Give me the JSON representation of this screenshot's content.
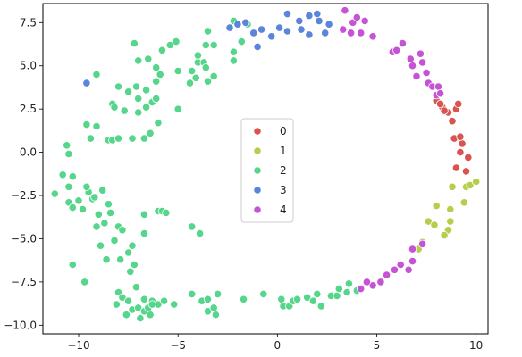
{
  "chart_data": {
    "type": "scatter",
    "title": "",
    "xlabel": "",
    "ylabel": "",
    "xlim": [
      -11.8,
      10.6
    ],
    "ylim": [
      -10.5,
      8.6
    ],
    "xticks": [
      -10,
      -5,
      0,
      5,
      10
    ],
    "yticks": [
      -10.0,
      -7.5,
      -5.0,
      -2.5,
      0.0,
      2.5,
      5.0,
      7.5
    ],
    "xtick_labels": [
      "−10",
      "−5",
      "0",
      "5",
      "10"
    ],
    "ytick_labels": [
      "−10.0",
      "−7.5",
      "−5.0",
      "−2.5",
      "0.0",
      "2.5",
      "5.0",
      "7.5"
    ],
    "grid": false,
    "legend_position": "center",
    "series": [
      {
        "name": "0",
        "color": "#d9534f",
        "points": [
          [
            8.0,
            3.0
          ],
          [
            8.3,
            2.6
          ],
          [
            8.6,
            2.3
          ],
          [
            9.0,
            2.5
          ],
          [
            8.2,
            2.8
          ],
          [
            9.1,
            2.8
          ],
          [
            8.8,
            1.8
          ],
          [
            8.9,
            0.8
          ],
          [
            9.3,
            0.5
          ],
          [
            9.2,
            0.0
          ],
          [
            9.0,
            -0.9
          ],
          [
            9.5,
            -1.1
          ],
          [
            9.6,
            -0.3
          ],
          [
            9.2,
            0.9
          ],
          [
            8.4,
            2.4
          ]
        ]
      },
      {
        "name": "1",
        "color": "#b5cf4d",
        "points": [
          [
            8.8,
            -2.0
          ],
          [
            9.5,
            -2.0
          ],
          [
            9.7,
            -1.9
          ],
          [
            10.0,
            -1.7
          ],
          [
            9.4,
            -2.9
          ],
          [
            8.7,
            -3.3
          ],
          [
            8.0,
            -3.1
          ],
          [
            7.6,
            -4.0
          ],
          [
            7.9,
            -4.2
          ],
          [
            8.6,
            -4.5
          ],
          [
            8.4,
            -4.8
          ],
          [
            7.3,
            -5.2
          ],
          [
            7.1,
            -5.6
          ],
          [
            8.7,
            -4.0
          ]
        ]
      },
      {
        "name": "2",
        "color": "#55d68b",
        "points": [
          [
            -11.2,
            -2.4
          ],
          [
            -10.5,
            -2.9
          ],
          [
            -10.3,
            -3.2
          ],
          [
            -10.0,
            -2.8
          ],
          [
            -10.3,
            -1.4
          ],
          [
            -9.8,
            -3.3
          ],
          [
            -10.5,
            -2.0
          ],
          [
            -9.5,
            -2.3
          ],
          [
            -9.3,
            -2.7
          ],
          [
            -9.0,
            -3.6
          ],
          [
            -9.6,
            -2.0
          ],
          [
            -9.2,
            -2.6
          ],
          [
            -8.8,
            -2.2
          ],
          [
            -8.5,
            -3.0
          ],
          [
            -8.4,
            -3.5
          ],
          [
            -8.7,
            -4.1
          ],
          [
            -9.1,
            -4.3
          ],
          [
            -8.0,
            -4.3
          ],
          [
            -8.2,
            -5.1
          ],
          [
            -7.5,
            -5.8
          ],
          [
            -7.8,
            -4.5
          ],
          [
            -7.3,
            -5.4
          ],
          [
            -8.9,
            -5.4
          ],
          [
            -8.6,
            -6.2
          ],
          [
            -7.9,
            -6.2
          ],
          [
            -7.2,
            -6.5
          ],
          [
            -7.4,
            -6.9
          ],
          [
            -7.1,
            -7.8
          ],
          [
            -8.0,
            -8.1
          ],
          [
            -7.8,
            -8.4
          ],
          [
            -8.1,
            -8.8
          ],
          [
            -7.5,
            -8.6
          ],
          [
            -7.3,
            -9.1
          ],
          [
            -7.6,
            -9.4
          ],
          [
            -7.0,
            -9.0
          ],
          [
            -6.7,
            -9.2
          ],
          [
            -6.4,
            -9.4
          ],
          [
            -6.7,
            -8.5
          ],
          [
            -6.3,
            -8.6
          ],
          [
            -6.5,
            -9.0
          ],
          [
            -6.9,
            -9.6
          ],
          [
            -6.0,
            -8.8
          ],
          [
            -6.3,
            -8.8
          ],
          [
            -5.7,
            -8.6
          ],
          [
            -5.2,
            -8.8
          ],
          [
            -10.3,
            -6.5
          ],
          [
            -9.7,
            -7.5
          ],
          [
            -6.7,
            -3.6
          ],
          [
            -6.7,
            -4.7
          ],
          [
            -6.0,
            -3.4
          ],
          [
            -5.8,
            -3.4
          ],
          [
            -5.6,
            -3.5
          ],
          [
            -4.3,
            -4.3
          ],
          [
            -3.9,
            -4.7
          ],
          [
            -4.3,
            -8.2
          ],
          [
            -3.8,
            -8.6
          ],
          [
            -3.5,
            -8.5
          ],
          [
            -3.5,
            -9.2
          ],
          [
            -3.2,
            -9.0
          ],
          [
            -3.0,
            -8.2
          ],
          [
            -3.1,
            -9.4
          ],
          [
            -1.7,
            -8.5
          ],
          [
            -0.7,
            -8.2
          ],
          [
            0.2,
            -8.5
          ],
          [
            0.3,
            -8.9
          ],
          [
            0.6,
            -8.9
          ],
          [
            0.8,
            -8.6
          ],
          [
            1.5,
            -8.4
          ],
          [
            2.0,
            -8.2
          ],
          [
            2.7,
            -8.3
          ],
          [
            3.0,
            -8.3
          ],
          [
            3.5,
            -8.1
          ],
          [
            4.0,
            -8.0
          ],
          [
            2.2,
            -8.9
          ],
          [
            1.8,
            -8.6
          ],
          [
            1.0,
            -8.5
          ],
          [
            3.1,
            -7.9
          ],
          [
            3.6,
            -7.6
          ],
          [
            -9.1,
            4.5
          ],
          [
            -10.5,
            -0.1
          ],
          [
            -10.6,
            0.4
          ],
          [
            -10.8,
            -1.3
          ],
          [
            -9.6,
            1.6
          ],
          [
            -9.4,
            0.8
          ],
          [
            -9.1,
            1.5
          ],
          [
            -8.5,
            0.7
          ],
          [
            -8.3,
            0.7
          ],
          [
            -8.0,
            0.8
          ],
          [
            -7.3,
            0.8
          ],
          [
            -6.7,
            0.8
          ],
          [
            -6.4,
            1.1
          ],
          [
            -6.0,
            1.7
          ],
          [
            -5.0,
            2.5
          ],
          [
            -7.7,
            2.4
          ],
          [
            -7.0,
            2.3
          ],
          [
            -6.6,
            2.6
          ],
          [
            -8.3,
            2.8
          ],
          [
            -8.2,
            2.6
          ],
          [
            -7.5,
            3.5
          ],
          [
            -7.1,
            3.8
          ],
          [
            -7.0,
            3.1
          ],
          [
            -6.6,
            3.6
          ],
          [
            -6.3,
            2.9
          ],
          [
            -6.1,
            3.1
          ],
          [
            -8.0,
            3.8
          ],
          [
            -6.1,
            4.1
          ],
          [
            -5.9,
            4.5
          ],
          [
            -6.1,
            4.9
          ],
          [
            -6.5,
            5.4
          ],
          [
            -7.0,
            5.3
          ],
          [
            -7.2,
            6.3
          ],
          [
            -5.8,
            5.9
          ],
          [
            -5.4,
            6.2
          ],
          [
            -5.1,
            6.4
          ],
          [
            -5.0,
            4.7
          ],
          [
            -4.4,
            4.0
          ],
          [
            -4.1,
            4.3
          ],
          [
            -4.3,
            4.7
          ],
          [
            -4.0,
            5.2
          ],
          [
            -4.0,
            5.6
          ],
          [
            -3.7,
            5.2
          ],
          [
            -3.6,
            4.9
          ],
          [
            -3.5,
            4.1
          ],
          [
            -3.2,
            4.4
          ],
          [
            -3.6,
            6.2
          ],
          [
            -3.2,
            6.2
          ],
          [
            -2.2,
            5.3
          ],
          [
            -2.2,
            5.8
          ],
          [
            -1.8,
            6.4
          ],
          [
            -1.5,
            7.4
          ],
          [
            -3.5,
            7.0
          ],
          [
            -2.2,
            7.6
          ]
        ]
      },
      {
        "name": "3",
        "color": "#5b84db",
        "points": [
          [
            -9.6,
            4.0
          ],
          [
            -2.4,
            7.2
          ],
          [
            -2.0,
            7.4
          ],
          [
            -1.6,
            7.5
          ],
          [
            -1.2,
            6.9
          ],
          [
            -1.0,
            6.1
          ],
          [
            -0.8,
            7.1
          ],
          [
            -0.3,
            6.7
          ],
          [
            0.1,
            7.2
          ],
          [
            0.5,
            7.0
          ],
          [
            0.5,
            8.0
          ],
          [
            1.1,
            7.6
          ],
          [
            1.2,
            7.1
          ],
          [
            1.6,
            7.9
          ],
          [
            1.6,
            6.8
          ],
          [
            2.0,
            8.0
          ],
          [
            2.1,
            7.6
          ],
          [
            2.4,
            6.9
          ],
          [
            2.6,
            7.4
          ]
        ]
      },
      {
        "name": "4",
        "color": "#c652d6",
        "points": [
          [
            3.4,
            8.2
          ],
          [
            3.3,
            7.1
          ],
          [
            3.7,
            6.9
          ],
          [
            3.8,
            7.5
          ],
          [
            4.0,
            7.8
          ],
          [
            4.2,
            6.9
          ],
          [
            4.4,
            7.6
          ],
          [
            4.8,
            6.7
          ],
          [
            5.8,
            5.8
          ],
          [
            6.0,
            5.9
          ],
          [
            6.3,
            6.3
          ],
          [
            6.7,
            5.4
          ],
          [
            6.8,
            5.0
          ],
          [
            7.0,
            4.4
          ],
          [
            7.2,
            5.7
          ],
          [
            7.3,
            5.2
          ],
          [
            7.5,
            4.6
          ],
          [
            7.6,
            4.0
          ],
          [
            7.8,
            3.8
          ],
          [
            8.0,
            3.3
          ],
          [
            8.1,
            3.8
          ],
          [
            8.2,
            3.4
          ],
          [
            6.8,
            -6.3
          ],
          [
            6.6,
            -6.8
          ],
          [
            6.2,
            -6.5
          ],
          [
            5.9,
            -6.8
          ],
          [
            5.5,
            -7.1
          ],
          [
            5.2,
            -7.5
          ],
          [
            4.8,
            -7.7
          ],
          [
            4.5,
            -7.5
          ],
          [
            7.3,
            -5.3
          ],
          [
            6.8,
            -5.6
          ],
          [
            4.2,
            -7.9
          ]
        ]
      }
    ]
  }
}
